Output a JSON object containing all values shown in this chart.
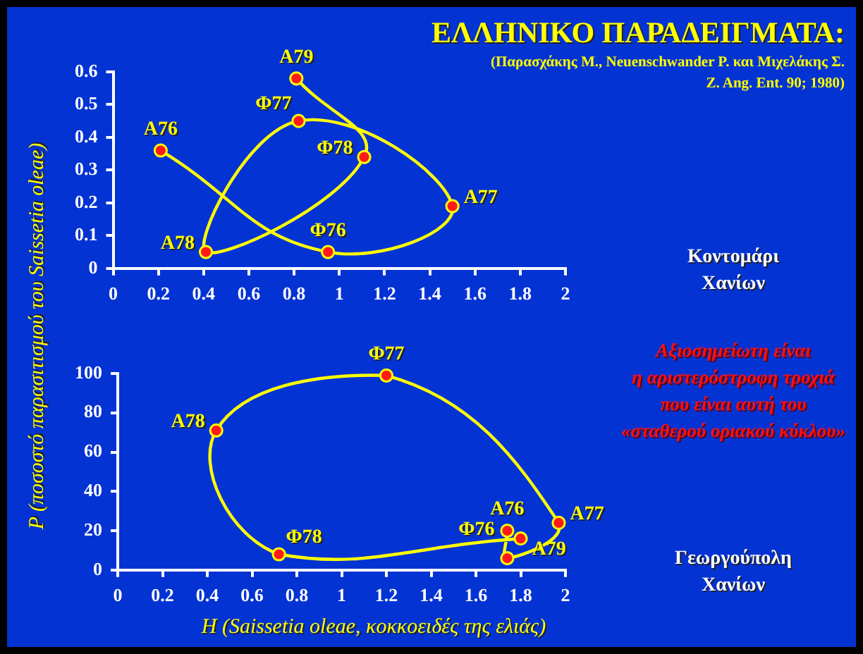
{
  "chart_data": [
    {
      "type": "line",
      "title": "ΕΛΛΗΝΙΚΟ  ΠΑΡΑΔΕΙΓΜΑΤΑ:",
      "subtitle": "(Παρασχάκης Μ., Neuenschwander P.  και Μιχελάκης Σ.\nZ. Ang. Ent. 90; 1980)",
      "ylabel": "P  (ποσοστό παρασιτισμού του Saissetia oleae)",
      "xlim": [
        0,
        2
      ],
      "xticks": [
        0,
        0.2,
        0.4,
        0.6,
        0.8,
        1,
        1.2,
        1.4,
        1.6,
        1.8,
        2
      ],
      "ylim": [
        0,
        0.6
      ],
      "yticks": [
        0,
        0.1,
        0.2,
        0.3,
        0.4,
        0.5,
        0.6
      ],
      "grid": false,
      "legend": false,
      "marker": "circle",
      "series": [
        {
          "color": "#ffff00",
          "x": [
            0.21,
            0.95,
            1.5,
            0.82,
            0.41,
            1.11,
            0.81
          ],
          "values": [
            0.36,
            0.05,
            0.19,
            0.45,
            0.05,
            0.34,
            0.58
          ]
        }
      ],
      "annotations": [
        {
          "text": "Α76",
          "x": 0.21,
          "y": 0.36
        },
        {
          "text": "Φ76",
          "x": 0.95,
          "y": 0.05
        },
        {
          "text": "Α77",
          "x": 1.5,
          "y": 0.19
        },
        {
          "text": "Φ77",
          "x": 0.82,
          "y": 0.45
        },
        {
          "text": "Α78",
          "x": 0.41,
          "y": 0.05
        },
        {
          "text": "Φ78",
          "x": 1.11,
          "y": 0.34
        },
        {
          "text": "Α79",
          "x": 0.81,
          "y": 0.58
        },
        "Κοντομάρι\nΧανίων"
      ]
    },
    {
      "type": "line",
      "xlabel": "H   (Saissetia oleae, κοκκοειδές της ελιάς)",
      "xlim": [
        0,
        2
      ],
      "xticks": [
        0,
        0.2,
        0.4,
        0.6,
        0.8,
        1,
        1.2,
        1.4,
        1.6,
        1.8,
        2
      ],
      "ylim": [
        0,
        100
      ],
      "yticks": [
        0,
        20,
        40,
        60,
        80,
        100
      ],
      "grid": false,
      "legend": false,
      "marker": "circle",
      "series": [
        {
          "color": "#ffff00",
          "x": [
            1.74,
            1.74,
            1.97,
            1.2,
            0.44,
            0.72,
            1.8
          ],
          "values": [
            20,
            6,
            24,
            99,
            71,
            8,
            16
          ]
        }
      ],
      "annotations": [
        {
          "text": "Α76",
          "x": 1.74,
          "y": 20
        },
        {
          "text": "Φ76",
          "x": 1.74,
          "y": 6
        },
        {
          "text": "Α77",
          "x": 1.97,
          "y": 24
        },
        {
          "text": "Φ77",
          "x": 1.2,
          "y": 99
        },
        {
          "text": "Α78",
          "x": 0.44,
          "y": 71
        },
        {
          "text": "Φ78",
          "x": 0.72,
          "y": 8
        },
        {
          "text": "Α79",
          "x": 1.8,
          "y": 16
        },
        "Αξιοσημείωτη είναι\nη αριστερόστροφη τροχιά\nπου είναι αυτή του\n«σταθερού οριακού κύκλου»",
        "Γεωργούπολη\nΧανίων"
      ]
    }
  ]
}
